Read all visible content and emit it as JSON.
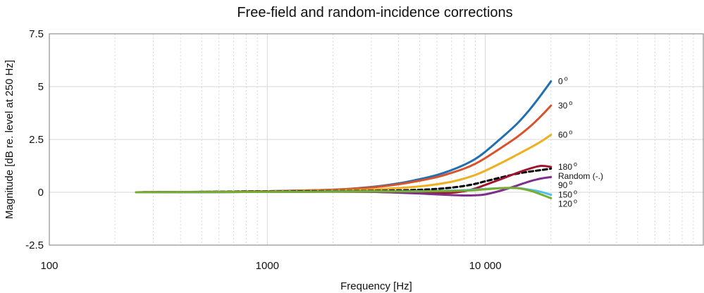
{
  "chart_data": {
    "type": "line",
    "title": "Free-field and random-incidence corrections",
    "xlabel": "Frequency [Hz]",
    "ylabel": "Magnitude [dB re. level at 250 Hz]",
    "xscale": "log",
    "xlim": [
      100,
      100000
    ],
    "ylim": [
      -2.5,
      7.5
    ],
    "x_ticks": [
      100,
      1000,
      10000
    ],
    "x_tick_labels": [
      "100",
      "1000",
      "10 000"
    ],
    "y_ticks": [
      -2.5,
      0,
      2.5,
      5,
      7.5
    ],
    "y_tick_labels": [
      "-2.5",
      "0",
      "2.5",
      "5",
      "7.5"
    ],
    "grid": true,
    "x": [
      250,
      500,
      1000,
      2000,
      3000,
      4000,
      5000,
      6000,
      7000,
      8000,
      9000,
      10000,
      12000,
      14000,
      16000,
      18000,
      20000
    ],
    "series": [
      {
        "name": "0°",
        "label_text": "0",
        "label_sup": "o",
        "color": "#1f6fb2",
        "dash": "",
        "values": [
          0,
          0.02,
          0.05,
          0.12,
          0.25,
          0.42,
          0.62,
          0.82,
          1.05,
          1.3,
          1.58,
          1.92,
          2.62,
          3.25,
          3.92,
          4.6,
          5.25
        ]
      },
      {
        "name": "30°",
        "label_text": "30",
        "label_sup": "o",
        "color": "#d9532a",
        "dash": "",
        "values": [
          0,
          0.02,
          0.05,
          0.12,
          0.23,
          0.38,
          0.55,
          0.72,
          0.92,
          1.12,
          1.35,
          1.62,
          2.15,
          2.62,
          3.1,
          3.6,
          4.1
        ]
      },
      {
        "name": "60°",
        "label_text": "60",
        "label_sup": "o",
        "color": "#edb120",
        "dash": "",
        "values": [
          0,
          0.02,
          0.04,
          0.08,
          0.13,
          0.2,
          0.28,
          0.38,
          0.5,
          0.65,
          0.82,
          1.02,
          1.42,
          1.78,
          2.1,
          2.4,
          2.72
        ]
      },
      {
        "name": "Random (-.)",
        "label_text": "Random (-.)",
        "label_sup": "",
        "color": "#000000",
        "dash": "6 4",
        "values": [
          0,
          0.02,
          0.04,
          0.06,
          0.07,
          0.09,
          0.12,
          0.16,
          0.22,
          0.3,
          0.4,
          0.52,
          0.72,
          0.88,
          0.98,
          1.05,
          1.12
        ]
      },
      {
        "name": "180°",
        "label_text": "180",
        "label_sup": "o",
        "color": "#a2142f",
        "dash": "",
        "values": [
          0,
          0.01,
          0.02,
          0.03,
          0.02,
          0.0,
          -0.02,
          -0.03,
          -0.02,
          0.05,
          0.18,
          0.35,
          0.65,
          0.92,
          1.12,
          1.25,
          1.2
        ]
      },
      {
        "name": "90°",
        "label_text": "90",
        "label_sup": "o",
        "color": "#7e2f8e",
        "dash": "",
        "values": [
          0,
          0.01,
          0.02,
          0.03,
          0.02,
          -0.02,
          -0.06,
          -0.1,
          -0.13,
          -0.15,
          -0.14,
          -0.1,
          0.1,
          0.32,
          0.52,
          0.65,
          0.72
        ]
      },
      {
        "name": "150°",
        "label_text": "150",
        "label_sup": "o",
        "color": "#4dbeee",
        "dash": "",
        "values": [
          0,
          0.01,
          0.02,
          0.04,
          0.05,
          0.05,
          0.05,
          0.06,
          0.08,
          0.1,
          0.13,
          0.16,
          0.2,
          0.2,
          0.12,
          0.02,
          -0.12
        ]
      },
      {
        "name": "120°",
        "label_text": "120",
        "label_sup": "o",
        "color": "#77ac30",
        "dash": "",
        "values": [
          0,
          0.01,
          0.02,
          0.03,
          0.04,
          0.04,
          0.04,
          0.05,
          0.06,
          0.08,
          0.1,
          0.14,
          0.2,
          0.2,
          0.08,
          -0.1,
          -0.28
        ]
      }
    ]
  }
}
